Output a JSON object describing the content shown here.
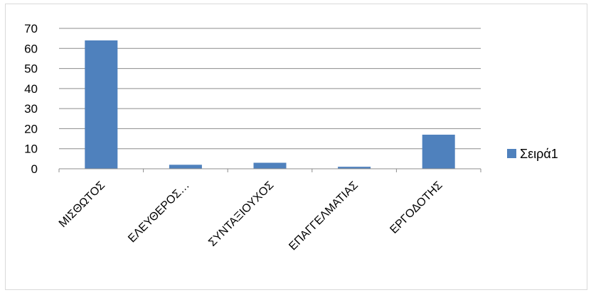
{
  "chart_data": {
    "type": "bar",
    "categories": [
      "ΜΙΣΘΩΤΟΣ",
      "ΕΛΕΥΘΕΡΟΣ…",
      "ΣΥΝΤΑΞΙΟΥΧΟΣ",
      "ΕΠΑΓΓΕΛΜΑΤΙΑΣ",
      "ΕΡΓΟΔΟΤΗΣ"
    ],
    "series": [
      {
        "name": "Σειρά1",
        "values": [
          64,
          2,
          3,
          1,
          17
        ],
        "color": "#4f81bd"
      }
    ],
    "title": "",
    "xlabel": "",
    "ylabel": "",
    "ylim": [
      0,
      70
    ],
    "yticks": [
      "0",
      "10",
      "20",
      "30",
      "40",
      "50",
      "60",
      "70"
    ],
    "grid": true,
    "gridline_color": "#8c8c8c",
    "legend_position": "right"
  }
}
